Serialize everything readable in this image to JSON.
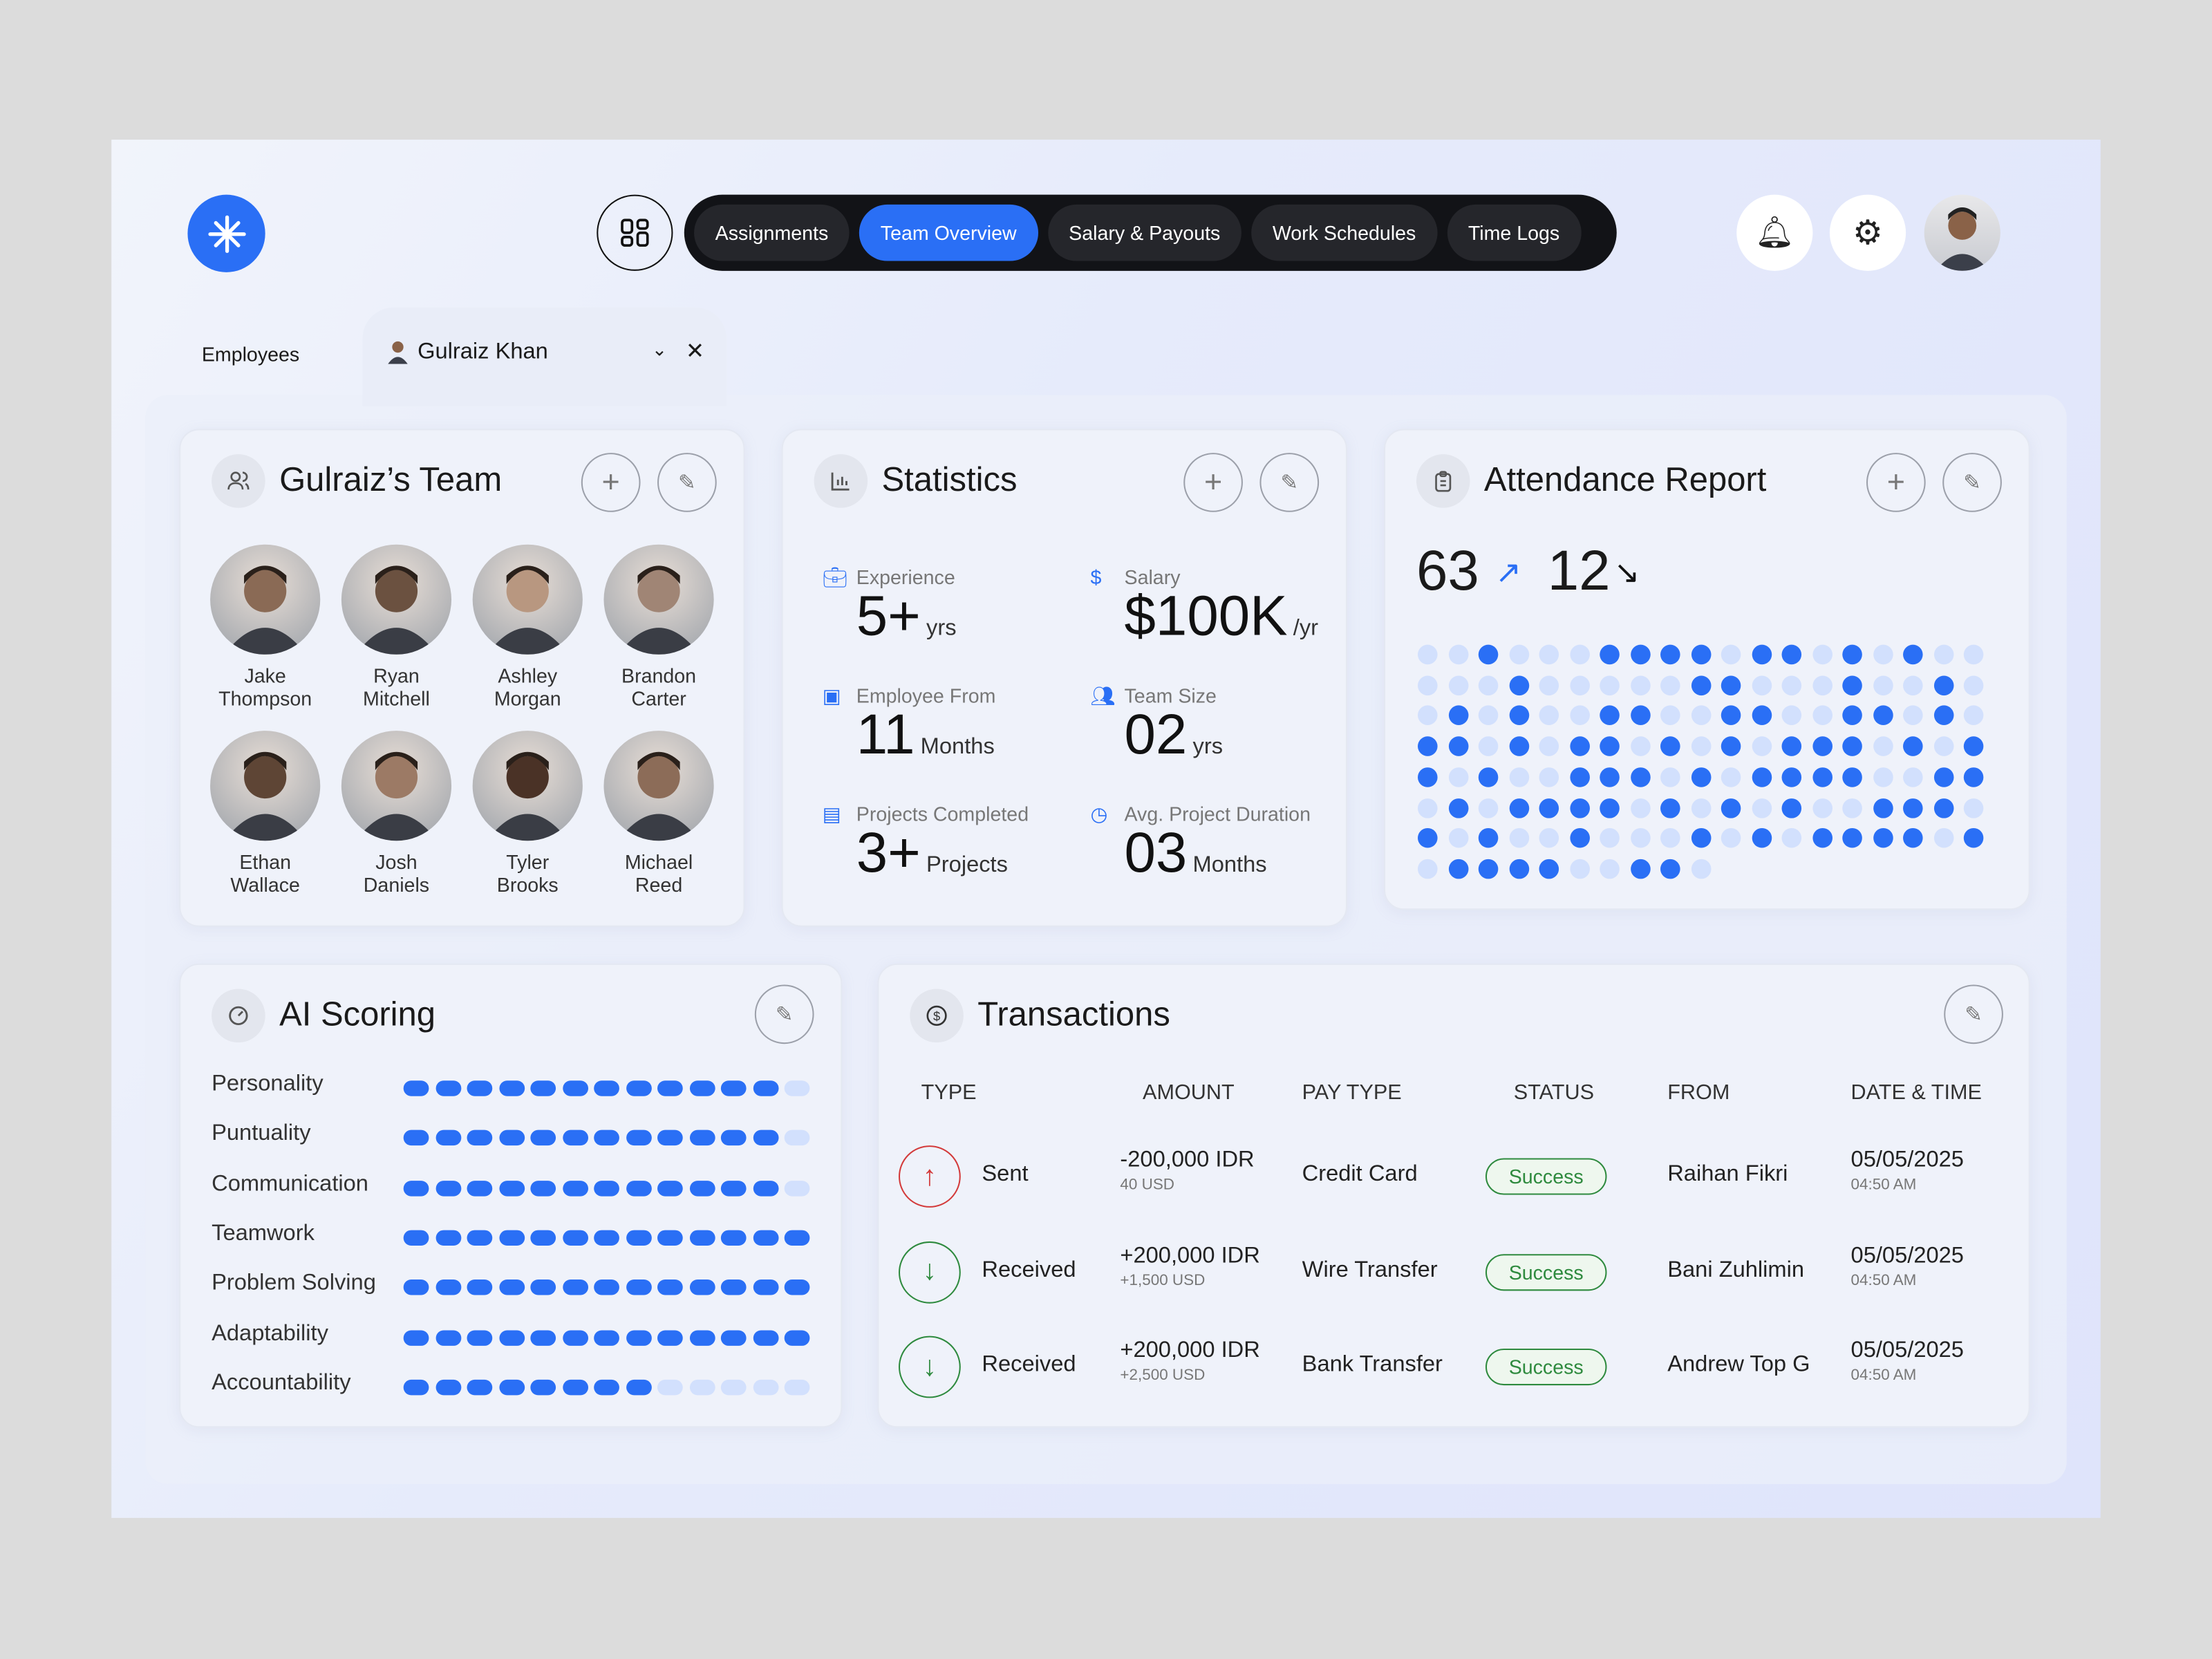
{
  "colors": {
    "accent": "#2a6ff5",
    "dot_off": "#d2e0fd",
    "success": "#2e8a3e",
    "sent": "#d33a3a"
  },
  "header": {
    "logo": "asterisk-logo",
    "tabs": [
      "Assignments",
      "Team Overview",
      "Salary & Payouts",
      "Work Schedules",
      "Time Logs"
    ],
    "active_tab": 1
  },
  "breadcrumb": {
    "employees": "Employees",
    "selected": "Gulraiz Khan"
  },
  "team": {
    "title": "Gulraiz’s Team",
    "members": [
      {
        "first": "Jake",
        "last": "Thompson",
        "tone": "#8a6a55"
      },
      {
        "first": "Ryan",
        "last": "Mitchell",
        "tone": "#6b5140"
      },
      {
        "first": "Ashley",
        "last": "Morgan",
        "tone": "#b89780"
      },
      {
        "first": "Brandon",
        "last": "Carter",
        "tone": "#a08575"
      },
      {
        "first": "Ethan",
        "last": "Wallace",
        "tone": "#5e4535"
      },
      {
        "first": "Josh",
        "last": "Daniels",
        "tone": "#9c7a65"
      },
      {
        "first": "Tyler",
        "last": "Brooks",
        "tone": "#4a3226"
      },
      {
        "first": "Michael",
        "last": "Reed",
        "tone": "#8c6c58"
      }
    ]
  },
  "statistics": {
    "title": "Statistics",
    "items": [
      {
        "label": "Experience",
        "value": "5+",
        "unit": "yrs",
        "icon": "briefcase-icon"
      },
      {
        "label": "Salary",
        "value": "$100K",
        "unit": "/yr",
        "icon": "dollar-icon"
      },
      {
        "label": "Employee From",
        "value": "11",
        "unit": "Months",
        "icon": "badge-icon"
      },
      {
        "label": "Team Size",
        "value": "02",
        "unit": "yrs",
        "icon": "users-icon"
      },
      {
        "label": "Projects Completed",
        "value": "3+",
        "unit": "Projects",
        "icon": "document-icon"
      },
      {
        "label": "Avg. Project Duration",
        "value": "03",
        "unit": "Months",
        "icon": "clock-icon"
      }
    ]
  },
  "attendance": {
    "title": "Attendance Report",
    "present": "63",
    "absent": "12",
    "grid": [
      "0010001111011010100",
      "0001000001100010010",
      "0101001100110011010",
      "1101011010101110101",
      "1010011101011110011",
      "0101111010101001110",
      "1010010001010111101",
      "0111100110"
    ]
  },
  "ai_scoring": {
    "title": "AI Scoring",
    "segments_total": 13,
    "items": [
      {
        "label": "Personality",
        "score": 12
      },
      {
        "label": "Puntuality",
        "score": 12
      },
      {
        "label": "Communication",
        "score": 12
      },
      {
        "label": "Teamwork",
        "score": 13
      },
      {
        "label": "Problem Solving",
        "score": 13
      },
      {
        "label": "Adaptability",
        "score": 13
      },
      {
        "label": "Accountability",
        "score": 8
      }
    ]
  },
  "transactions": {
    "title": "Transactions",
    "columns": [
      "TYPE",
      "AMOUNT",
      "PAY TYPE",
      "STATUS",
      "FROM",
      "DATE & TIME"
    ],
    "rows": [
      {
        "type": "Sent",
        "direction": "up",
        "amount": "-200,000 IDR",
        "amount_sub": "40 USD",
        "pay_type": "Credit Card",
        "status": "Success",
        "from": "Raihan Fikri",
        "date": "05/05/2025",
        "time": "04:50 AM"
      },
      {
        "type": "Received",
        "direction": "down",
        "amount": "+200,000 IDR",
        "amount_sub": "+1,500 USD",
        "pay_type": "Wire Transfer",
        "status": "Success",
        "from": "Bani Zuhlimin",
        "date": "05/05/2025",
        "time": "04:50 AM"
      },
      {
        "type": "Received",
        "direction": "down",
        "amount": "+200,000 IDR",
        "amount_sub": "+2,500 USD",
        "pay_type": "Bank Transfer",
        "status": "Success",
        "from": "Andrew Top G",
        "date": "05/05/2025",
        "time": "04:50 AM"
      }
    ]
  }
}
